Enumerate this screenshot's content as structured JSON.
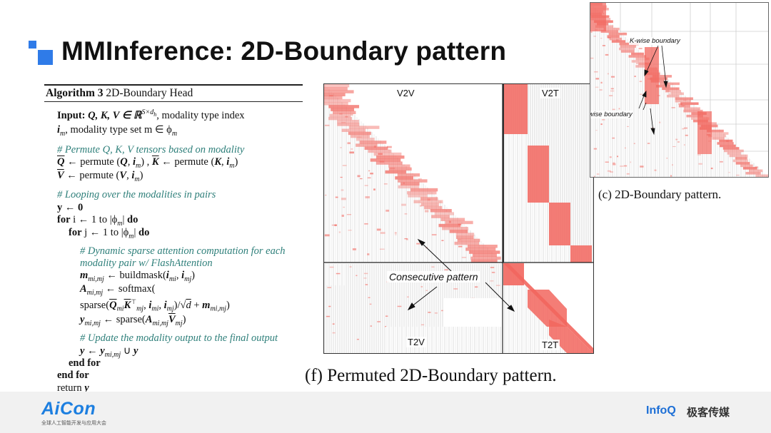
{
  "slide": {
    "title": "MMInference: 2D-Boundary pattern"
  },
  "algorithm": {
    "caption_bold": "Algorithm 3",
    "caption_rest": " 2D-Boundary Head",
    "input_label": "Input:",
    "input_text1": " Q, K, V ∈ ℝ",
    "input_sup": "S×d",
    "input_text2": ", modality type index",
    "input_line2": "i",
    "input_line2_sub": "m",
    "input_line2_rest": ", modality type set m ∈ ϕ",
    "input_line2_sub2": "m",
    "comment1": "# Permute Q, K, V tensors based on modality",
    "permute1": "Q ← permute (Q, i",
    "permute1b": "K ← permute (K, i",
    "permute2": "V ← permute (V, i",
    "comment2": "# Looping over the modalities in pairs",
    "init": "y ← 0",
    "for_i": "for",
    "for_i_text": " i ← 1 to |ϕ",
    "do": "do",
    "for_j": "for",
    "for_j_text": " j ← 1 to |ϕ",
    "comment3a": "# Dynamic sparse attention computation for each",
    "comment3b": "modality pair w/ FlashAttention",
    "mask_line": "← buildmask(",
    "softmax_line": "← softmax(",
    "sparse_line": "sparse(",
    "sparse_line2": "← sparse(",
    "comment4": "# Update the modality output to the final output",
    "update_line": "y ← y",
    "end_for": "end for",
    "return": "return",
    "return_var": "y"
  },
  "permuted_figure": {
    "quadrants": {
      "v2v": "V2V",
      "v2t": "V2T",
      "t2v": "T2V",
      "t2t": "T2T"
    },
    "annotation": "Consecutive pattern",
    "caption": "(f) Permuted 2D-Boundary pattern."
  },
  "boundary_figure": {
    "k_label": "K-wise boundary",
    "q_label": "Q-wise boundary",
    "caption": "(c) 2D-Boundary pattern."
  },
  "footer": {
    "aicon": "AiCon",
    "aicon_sub": "全球人工智能开发与应用大会",
    "infoq": "InfoQ",
    "jike": "极客传媒"
  },
  "colors": {
    "accent_blue": "#2f7be8",
    "heat_red": "#f2665e",
    "comment_teal": "#2e7f7a"
  }
}
